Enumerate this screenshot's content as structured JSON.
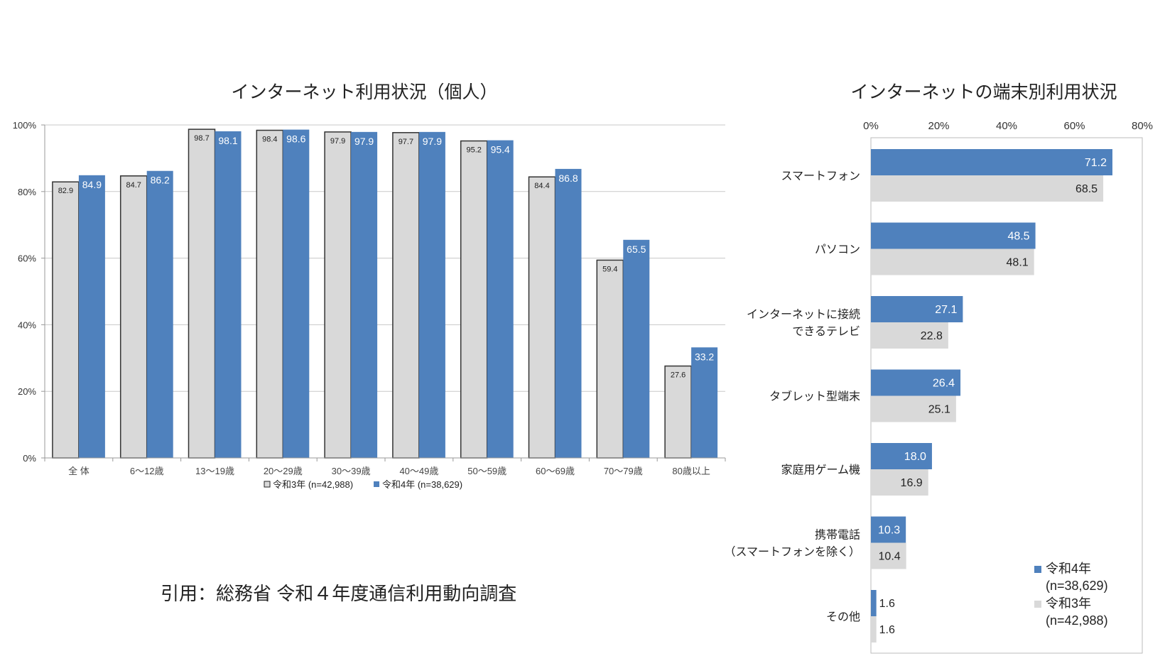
{
  "chart_data": [
    {
      "type": "bar",
      "title": "インターネット利用状況（個人）",
      "categories": [
        "全 体",
        "6〜12歳",
        "13〜19歳",
        "20〜29歳",
        "30〜39歳",
        "40〜49歳",
        "50〜59歳",
        "60〜69歳",
        "70〜79歳",
        "80歳以上"
      ],
      "series": [
        {
          "name": "令和3年 (n=42,988)",
          "color": "#d9d9d9",
          "values": [
            82.9,
            84.7,
            98.7,
            98.4,
            97.9,
            97.7,
            95.2,
            84.4,
            59.4,
            27.6
          ]
        },
        {
          "name": "令和4年 (n=38,629)",
          "color": "#4f81bd",
          "values": [
            84.9,
            86.2,
            98.1,
            98.6,
            97.9,
            97.9,
            95.4,
            86.8,
            65.5,
            33.2
          ]
        }
      ],
      "yticks": [
        "0%",
        "20%",
        "40%",
        "60%",
        "80%",
        "100%"
      ],
      "ylim": [
        0,
        100
      ],
      "grid": true,
      "legend": "bottom"
    },
    {
      "type": "bar",
      "orientation": "horizontal",
      "title": "インターネットの端末別利用状況",
      "categories": [
        "スマートフォン",
        "パソコン",
        "インターネットに接続\nできるテレビ",
        "タブレット型端末",
        "家庭用ゲーム機",
        "携帯電話\n（スマートフォンを除く）",
        "その他"
      ],
      "series": [
        {
          "name": "令和4年\n(n=38,629)",
          "color": "#4f81bd",
          "values": [
            71.2,
            48.5,
            27.1,
            26.4,
            18.0,
            10.3,
            1.6
          ]
        },
        {
          "name": "令和3年\n(n=42,988)",
          "color": "#d9d9d9",
          "values": [
            68.5,
            48.1,
            22.8,
            25.1,
            16.9,
            10.4,
            1.6
          ]
        }
      ],
      "xticks": [
        "0%",
        "20%",
        "40%",
        "60%",
        "80%"
      ],
      "xlim": [
        0,
        80
      ],
      "grid": false,
      "legend": "bottom-right"
    }
  ],
  "citation": "引用：総務省 令和４年度通信利用動向調査"
}
